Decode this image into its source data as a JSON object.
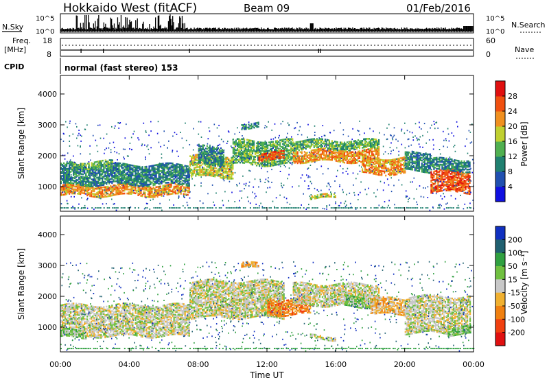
{
  "header": {
    "station": "Hokkaido West (fitACF)",
    "beam": "Beam 09",
    "date": "01/Feb/2016"
  },
  "small_panels": {
    "nsky_label": "N.Sky",
    "nsky_top": "10^5",
    "nsky_bottom": "10^0",
    "nsearch_label": "N.Search",
    "freq_label": "Freq.",
    "freq_unit": "[MHz]",
    "freq_top": "18",
    "freq_bottom": "8",
    "nave_label": "Nave",
    "nave_top": "60",
    "nave_bottom": "0",
    "cpid_label": "CPID",
    "cpid_value": "normal (fast stereo) 153"
  },
  "chart_data": [
    {
      "type": "heatmap",
      "name": "power",
      "ylabel": "Slant Range [km]",
      "yticks": [
        "1000",
        "2000",
        "3000",
        "4000"
      ],
      "ylim": [
        200,
        4600
      ],
      "xlim_hours": [
        0,
        24
      ],
      "colorbar": {
        "label": "Power [dB]",
        "ticks": [
          "4",
          "8",
          "12",
          "16",
          "20",
          "24",
          "28"
        ],
        "colors": [
          "#1010e0",
          "#2050b0",
          "#208070",
          "#50b050",
          "#c0d030",
          "#f09020",
          "#f05010",
          "#e01010"
        ]
      },
      "bands": [
        {
          "start": 0.0,
          "end": 7.5,
          "low": 700,
          "high": 1050,
          "level": 5
        },
        {
          "start": 0.0,
          "end": 7.5,
          "low": 1050,
          "high": 1700,
          "level": 2
        },
        {
          "start": 0.5,
          "end": 3.0,
          "low": 1600,
          "high": 1800,
          "level": 3
        },
        {
          "start": 7.5,
          "end": 10.0,
          "low": 1300,
          "high": 2000,
          "level": 4
        },
        {
          "start": 8.0,
          "end": 9.5,
          "low": 1700,
          "high": 2300,
          "level": 2
        },
        {
          "start": 10.0,
          "end": 13.5,
          "low": 1700,
          "high": 2500,
          "level": 3
        },
        {
          "start": 11.5,
          "end": 13.0,
          "low": 1850,
          "high": 2100,
          "level": 6
        },
        {
          "start": 13.5,
          "end": 18.5,
          "low": 1800,
          "high": 2200,
          "level": 5
        },
        {
          "start": 13.5,
          "end": 18.5,
          "low": 2200,
          "high": 2500,
          "level": 3
        },
        {
          "start": 17.5,
          "end": 20.0,
          "low": 1400,
          "high": 1900,
          "level": 5
        },
        {
          "start": 20.0,
          "end": 21.5,
          "low": 1500,
          "high": 2100,
          "level": 2
        },
        {
          "start": 21.5,
          "end": 23.8,
          "low": 800,
          "high": 1500,
          "level": 6
        },
        {
          "start": 21.5,
          "end": 23.8,
          "low": 1500,
          "high": 1900,
          "level": 2
        },
        {
          "start": 14.5,
          "end": 16.0,
          "low": 600,
          "high": 700,
          "level": 4
        },
        {
          "start": 10.5,
          "end": 11.5,
          "low": 2900,
          "high": 3050,
          "level": 2
        }
      ]
    },
    {
      "type": "heatmap",
      "name": "velocity",
      "ylabel": "Slant Range [km]",
      "yticks": [
        "1000",
        "2000",
        "3000",
        "4000"
      ],
      "ylim": [
        200,
        4600
      ],
      "xlim_hours": [
        0,
        24
      ],
      "xticks": [
        "00:00",
        "04:00",
        "08:00",
        "12:00",
        "16:00",
        "20:00",
        "00:00"
      ],
      "xlabel": "Time UT",
      "colorbar": {
        "label": "Velocity [m s⁻¹]",
        "ticks": [
          "200",
          "100",
          "50",
          "15",
          "-15",
          "-50",
          "-100",
          "-200"
        ],
        "colors": [
          "#1030c0",
          "#206070",
          "#30a040",
          "#70c040",
          "#c8c8c8",
          "#f0b030",
          "#f08010",
          "#f04010",
          "#e01010"
        ]
      },
      "bands": [
        {
          "start": 0.0,
          "end": 7.5,
          "low": 700,
          "high": 1700,
          "level": 4
        },
        {
          "start": 0.0,
          "end": 1.5,
          "low": 650,
          "high": 900,
          "level": 3
        },
        {
          "start": 7.5,
          "end": 13.0,
          "low": 1300,
          "high": 2500,
          "level": 4
        },
        {
          "start": 12.0,
          "end": 14.5,
          "low": 1400,
          "high": 1900,
          "level": 6
        },
        {
          "start": 13.5,
          "end": 18.5,
          "low": 1700,
          "high": 2400,
          "level": 4
        },
        {
          "start": 16.5,
          "end": 18.0,
          "low": 1650,
          "high": 2000,
          "level": 3
        },
        {
          "start": 18.0,
          "end": 20.0,
          "low": 1400,
          "high": 1900,
          "level": 5
        },
        {
          "start": 20.0,
          "end": 23.8,
          "low": 800,
          "high": 2000,
          "level": 4
        },
        {
          "start": 22.5,
          "end": 23.8,
          "low": 750,
          "high": 1000,
          "level": 3
        },
        {
          "start": 14.5,
          "end": 16.0,
          "low": 600,
          "high": 700,
          "level": 4
        },
        {
          "start": 10.5,
          "end": 11.5,
          "low": 2900,
          "high": 3050,
          "level": 5
        }
      ]
    }
  ]
}
